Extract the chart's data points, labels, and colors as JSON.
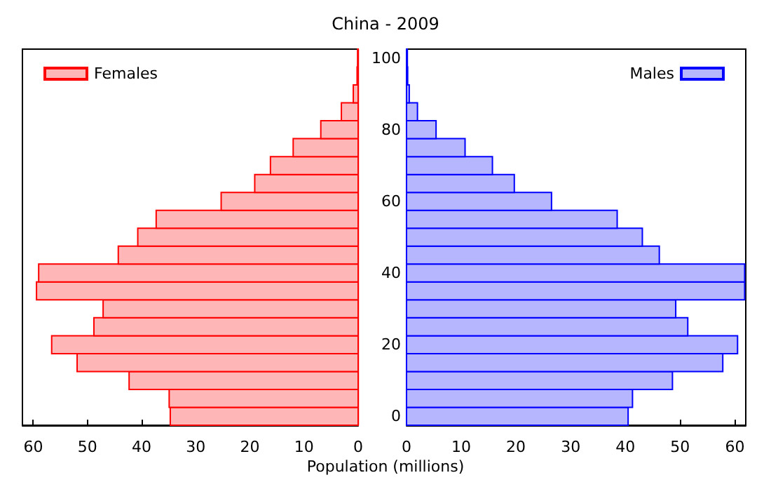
{
  "chart_data": [
    {
      "type": "bar",
      "orientation": "horizontal",
      "title": "China - 2009",
      "legend": "top left",
      "tick_labels": "x",
      "xlim": [
        62,
        0
      ],
      "xticks": [
        60,
        50,
        40,
        30,
        20,
        10,
        0
      ],
      "ylim": [
        -2.5,
        102.5
      ],
      "series": [
        {
          "name": "Females",
          "color": "#ffb6b6",
          "x": [
            0,
            5,
            10,
            15,
            20,
            25,
            30,
            35,
            40,
            45,
            50,
            55,
            60,
            65,
            70,
            75,
            80,
            85,
            90,
            95,
            100
          ],
          "values": [
            34.7,
            34.9,
            42.3,
            51.9,
            56.6,
            48.8,
            47.1,
            59.4,
            59.0,
            44.3,
            40.7,
            37.3,
            25.3,
            19.1,
            16.2,
            12.0,
            6.9,
            3.1,
            0.9,
            0.2,
            0.1
          ]
        }
      ]
    },
    {
      "type": "bar",
      "orientation": "horizontal",
      "xlabel": "Population (millions)",
      "legend": "top right",
      "xlim": [
        0,
        62
      ],
      "xticks": [
        0,
        10,
        20,
        30,
        40,
        50,
        60
      ],
      "ylim": [
        -2.5,
        102.5
      ],
      "yticks": [
        0,
        20,
        40,
        60,
        80,
        100
      ],
      "series": [
        {
          "name": "Males",
          "color": "#b6b6ff",
          "x": [
            0,
            5,
            10,
            15,
            20,
            25,
            30,
            35,
            40,
            45,
            50,
            55,
            60,
            65,
            70,
            75,
            80,
            85,
            90,
            95,
            100
          ],
          "values": [
            40.5,
            41.3,
            48.6,
            57.8,
            60.5,
            51.4,
            49.2,
            61.8,
            61.8,
            46.2,
            43.1,
            38.5,
            26.5,
            19.7,
            15.7,
            10.7,
            5.4,
            2.0,
            0.5,
            0.2,
            0.1
          ]
        }
      ]
    }
  ]
}
